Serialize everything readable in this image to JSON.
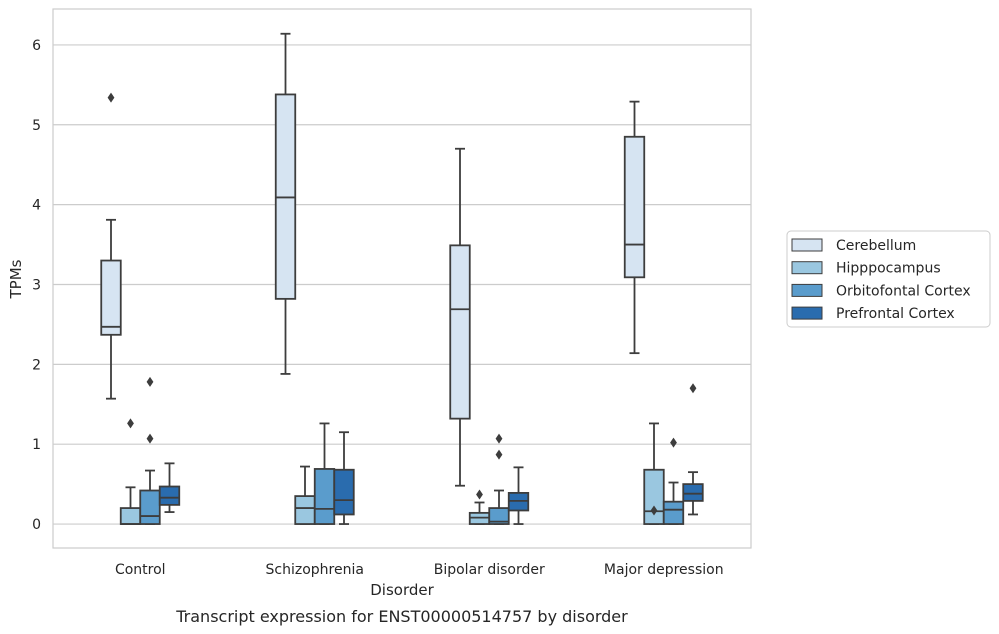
{
  "caption": "Transcript expression for ENST00000514757 by disorder",
  "chart_data": {
    "type": "box",
    "xlabel": "Disorder",
    "ylabel": "TPMs",
    "ylim": [
      -0.3,
      6.45
    ],
    "yticks": [
      0,
      1,
      2,
      3,
      4,
      5,
      6
    ],
    "grid": "horizontal",
    "legend_position": "right",
    "categories": [
      "Control",
      "Schizophrenia",
      "Bipolar disorder",
      "Major depression"
    ],
    "series": [
      {
        "name": "Cerebellum",
        "color": "#d6e4f2",
        "boxes": [
          {
            "whislo": 1.57,
            "q1": 2.37,
            "med": 2.47,
            "q3": 3.3,
            "whishi": 3.81,
            "fliers": [
              5.34
            ]
          },
          {
            "whislo": 1.88,
            "q1": 2.82,
            "med": 4.09,
            "q3": 5.38,
            "whishi": 6.14,
            "fliers": []
          },
          {
            "whislo": 0.48,
            "q1": 1.32,
            "med": 2.69,
            "q3": 3.49,
            "whishi": 4.7,
            "fliers": []
          },
          {
            "whislo": 2.14,
            "q1": 3.09,
            "med": 3.5,
            "q3": 4.85,
            "whishi": 5.29,
            "fliers": []
          }
        ]
      },
      {
        "name": "Hipppocampus",
        "color": "#9ac7e0",
        "boxes": [
          {
            "whislo": 0.0,
            "q1": 0.0,
            "med": 0.0,
            "q3": 0.2,
            "whishi": 0.46,
            "fliers": [
              1.26
            ]
          },
          {
            "whislo": 0.0,
            "q1": 0.0,
            "med": 0.2,
            "q3": 0.35,
            "whishi": 0.72,
            "fliers": []
          },
          {
            "whislo": 0.0,
            "q1": 0.0,
            "med": 0.08,
            "q3": 0.14,
            "whishi": 0.27,
            "fliers": [
              0.37
            ]
          },
          {
            "whislo": 0.0,
            "q1": 0.0,
            "med": 0.16,
            "q3": 0.68,
            "whishi": 1.26,
            "fliers": [
              0.17
            ]
          }
        ]
      },
      {
        "name": "Orbitofontal Cortex",
        "color": "#5a9ccc",
        "boxes": [
          {
            "whislo": 0.0,
            "q1": 0.0,
            "med": 0.1,
            "q3": 0.42,
            "whishi": 0.67,
            "fliers": [
              1.78,
              1.07
            ]
          },
          {
            "whislo": 0.0,
            "q1": 0.0,
            "med": 0.19,
            "q3": 0.69,
            "whishi": 1.26,
            "fliers": []
          },
          {
            "whislo": 0.0,
            "q1": 0.0,
            "med": 0.03,
            "q3": 0.2,
            "whishi": 0.42,
            "fliers": [
              1.07,
              0.87
            ]
          },
          {
            "whislo": 0.0,
            "q1": 0.0,
            "med": 0.18,
            "q3": 0.28,
            "whishi": 0.52,
            "fliers": [
              1.02
            ]
          }
        ]
      },
      {
        "name": "Prefrontal Cortex",
        "color": "#2a6cae",
        "boxes": [
          {
            "whislo": 0.15,
            "q1": 0.24,
            "med": 0.33,
            "q3": 0.47,
            "whishi": 0.76,
            "fliers": []
          },
          {
            "whislo": 0.0,
            "q1": 0.12,
            "med": 0.3,
            "q3": 0.68,
            "whishi": 1.15,
            "fliers": []
          },
          {
            "whislo": 0.0,
            "q1": 0.17,
            "med": 0.29,
            "q3": 0.39,
            "whishi": 0.71,
            "fliers": []
          },
          {
            "whislo": 0.12,
            "q1": 0.29,
            "med": 0.38,
            "q3": 0.5,
            "whishi": 0.65,
            "fliers": [
              1.7
            ]
          }
        ]
      }
    ]
  }
}
